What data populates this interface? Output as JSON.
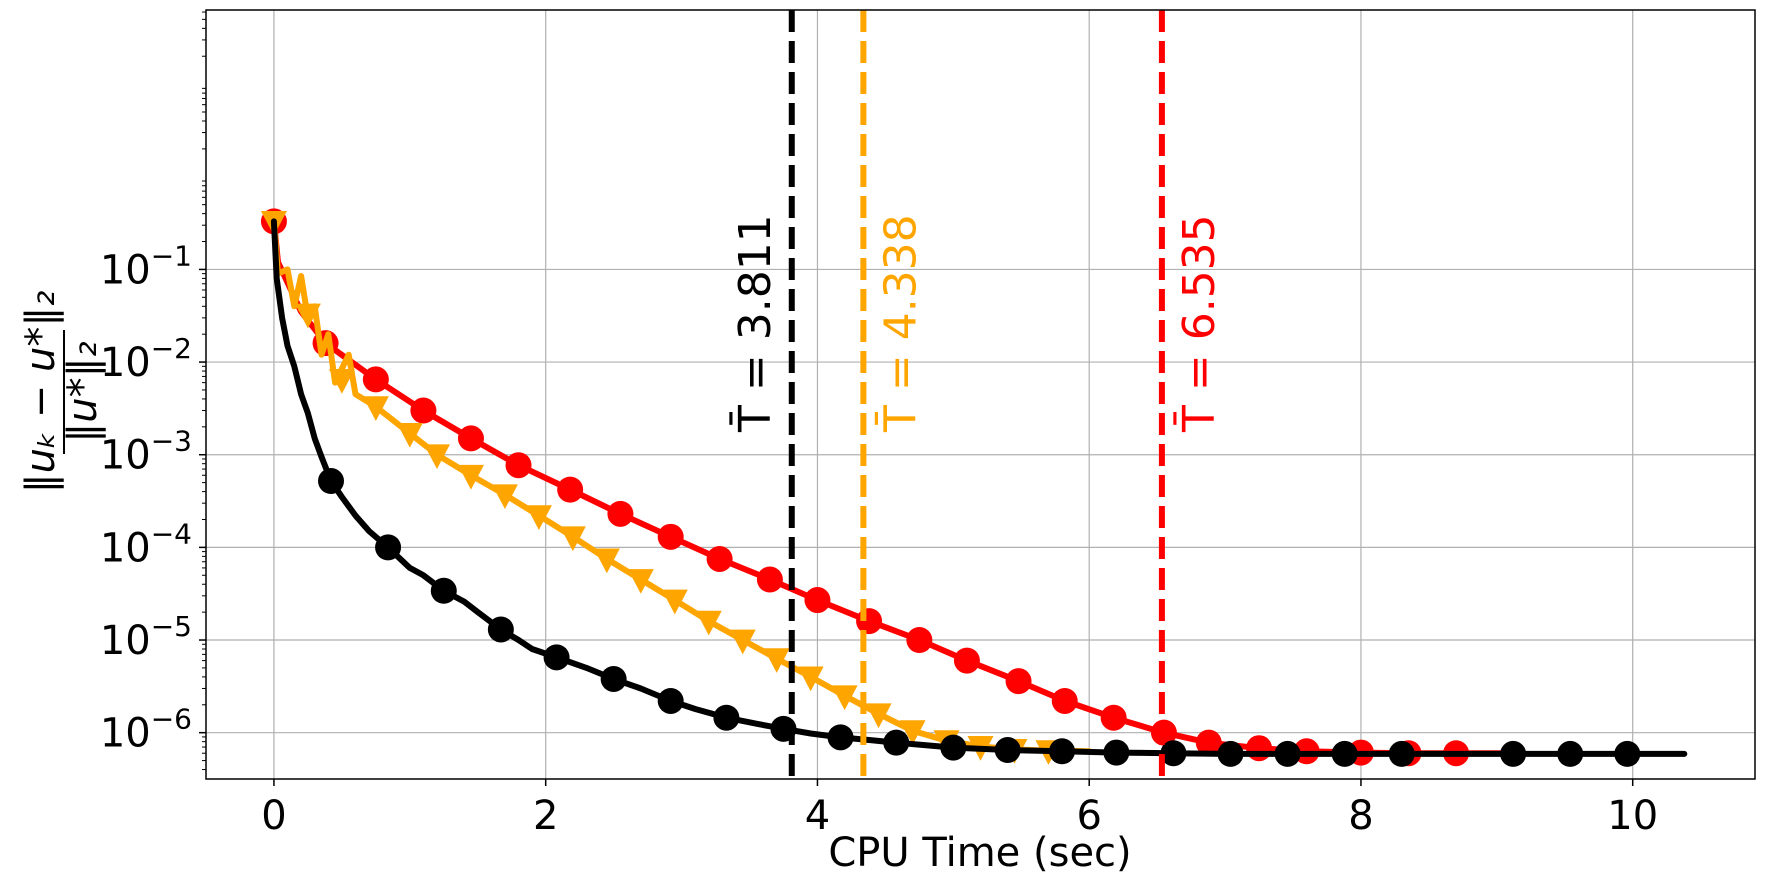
{
  "chart_data": {
    "type": "line",
    "title": "",
    "xlabel": "CPU Time (sec)",
    "ylabel": "‖u_k − u*‖₂ / ‖u*‖₂",
    "xlim": [
      -0.5,
      10.9
    ],
    "ylim_log10": [
      -6.5,
      1.8
    ],
    "yscale": "log",
    "grid": true,
    "x_ticks": [
      0,
      2,
      4,
      6,
      8,
      10
    ],
    "y_ticks_exponents": [
      -6,
      -5,
      -4,
      -3,
      -2,
      -1
    ],
    "y_tick_base": "10",
    "series": [
      {
        "color": "#ff0000",
        "marker": "circle",
        "curve": [
          [
            0,
            0.33
          ],
          [
            0.03,
            0.12
          ],
          [
            0.2,
            0.035
          ],
          [
            0.38,
            0.016
          ],
          [
            0.75,
            0.0065
          ],
          [
            1.1,
            0.003
          ],
          [
            1.45,
            0.0015
          ],
          [
            1.8,
            0.00077
          ],
          [
            2.18,
            0.00042
          ],
          [
            2.55,
            0.00023
          ],
          [
            2.92,
            0.00013
          ],
          [
            3.28,
            7.5e-05
          ],
          [
            3.65,
            4.5e-05
          ],
          [
            4.0,
            2.7e-05
          ],
          [
            4.38,
            1.6e-05
          ],
          [
            4.75,
            1e-05
          ],
          [
            5.1,
            6e-06
          ],
          [
            5.48,
            3.6e-06
          ],
          [
            5.82,
            2.2e-06
          ],
          [
            6.18,
            1.45e-06
          ],
          [
            6.55,
            1e-06
          ],
          [
            6.88,
            7.8e-07
          ],
          [
            7.25,
            6.8e-07
          ],
          [
            7.6,
            6.3e-07
          ],
          [
            8.0,
            6.1e-07
          ],
          [
            8.35,
            6e-07
          ],
          [
            8.7,
            6e-07
          ],
          [
            9.1,
            6e-07
          ]
        ],
        "markers": [
          [
            0,
            0.33
          ],
          [
            0.38,
            0.016
          ],
          [
            0.75,
            0.0065
          ],
          [
            1.1,
            0.003
          ],
          [
            1.45,
            0.0015
          ],
          [
            1.8,
            0.00077
          ],
          [
            2.18,
            0.00042
          ],
          [
            2.55,
            0.00023
          ],
          [
            2.92,
            0.00013
          ],
          [
            3.28,
            7.5e-05
          ],
          [
            3.65,
            4.5e-05
          ],
          [
            4.0,
            2.7e-05
          ],
          [
            4.38,
            1.6e-05
          ],
          [
            4.75,
            1e-05
          ],
          [
            5.1,
            6e-06
          ],
          [
            5.48,
            3.6e-06
          ],
          [
            5.82,
            2.2e-06
          ],
          [
            6.18,
            1.45e-06
          ],
          [
            6.55,
            1e-06
          ],
          [
            6.88,
            7.8e-07
          ],
          [
            7.25,
            6.8e-07
          ],
          [
            7.6,
            6.3e-07
          ],
          [
            8.0,
            6.1e-07
          ],
          [
            8.35,
            6e-07
          ],
          [
            8.7,
            6e-07
          ]
        ]
      },
      {
        "color": "#ffa500",
        "marker": "triangle-down",
        "curve": [
          [
            0,
            0.33
          ],
          [
            0.03,
            0.09
          ],
          [
            0.1,
            0.1
          ],
          [
            0.15,
            0.04
          ],
          [
            0.2,
            0.085
          ],
          [
            0.25,
            0.03
          ],
          [
            0.3,
            0.04
          ],
          [
            0.35,
            0.012
          ],
          [
            0.4,
            0.02
          ],
          [
            0.45,
            0.006
          ],
          [
            0.55,
            0.012
          ],
          [
            0.6,
            0.0045
          ],
          [
            0.75,
            0.0033
          ],
          [
            1.0,
            0.0017
          ],
          [
            1.2,
            0.001
          ],
          [
            1.45,
            0.0006
          ],
          [
            1.7,
            0.00037
          ],
          [
            1.95,
            0.00022
          ],
          [
            2.2,
            0.00013
          ],
          [
            2.45,
            7.5e-05
          ],
          [
            2.7,
            4.5e-05
          ],
          [
            2.95,
            2.7e-05
          ],
          [
            3.2,
            1.6e-05
          ],
          [
            3.45,
            1e-05
          ],
          [
            3.7,
            6.3e-06
          ],
          [
            3.95,
            4e-06
          ],
          [
            4.2,
            2.5e-06
          ],
          [
            4.45,
            1.6e-06
          ],
          [
            4.7,
            1.05e-06
          ],
          [
            4.95,
            8.2e-07
          ],
          [
            5.2,
            7.1e-07
          ],
          [
            5.45,
            6.6e-07
          ],
          [
            5.7,
            6.4e-07
          ],
          [
            6.0,
            6.3e-07
          ]
        ],
        "markers": [
          [
            0,
            0.33
          ],
          [
            0.25,
            0.033
          ],
          [
            0.5,
            0.0065
          ],
          [
            0.75,
            0.0033
          ],
          [
            1.0,
            0.0017
          ],
          [
            1.2,
            0.001
          ],
          [
            1.45,
            0.0006
          ],
          [
            1.7,
            0.00037
          ],
          [
            1.95,
            0.00022
          ],
          [
            2.2,
            0.00013
          ],
          [
            2.45,
            7.5e-05
          ],
          [
            2.7,
            4.5e-05
          ],
          [
            2.95,
            2.7e-05
          ],
          [
            3.2,
            1.6e-05
          ],
          [
            3.45,
            1e-05
          ],
          [
            3.7,
            6.3e-06
          ],
          [
            3.95,
            4e-06
          ],
          [
            4.2,
            2.5e-06
          ],
          [
            4.45,
            1.6e-06
          ],
          [
            4.7,
            1.05e-06
          ],
          [
            4.95,
            8.2e-07
          ],
          [
            5.2,
            7.1e-07
          ],
          [
            5.45,
            6.6e-07
          ],
          [
            5.7,
            6.4e-07
          ]
        ]
      },
      {
        "color": "#000000",
        "marker": "circle",
        "curve": [
          [
            0,
            0.33
          ],
          [
            0.02,
            0.08
          ],
          [
            0.06,
            0.03
          ],
          [
            0.1,
            0.015
          ],
          [
            0.15,
            0.009
          ],
          [
            0.2,
            0.0045
          ],
          [
            0.25,
            0.0028
          ],
          [
            0.3,
            0.0015
          ],
          [
            0.35,
            0.00095
          ],
          [
            0.42,
            0.00052
          ],
          [
            0.5,
            0.00035
          ],
          [
            0.6,
            0.00022
          ],
          [
            0.7,
            0.00015
          ],
          [
            0.84,
            0.0001
          ],
          [
            1.0,
            6e-05
          ],
          [
            1.1,
            5e-05
          ],
          [
            1.25,
            3.4e-05
          ],
          [
            1.4,
            2.6e-05
          ],
          [
            1.5,
            2e-05
          ],
          [
            1.67,
            1.3e-05
          ],
          [
            1.8,
            1e-05
          ],
          [
            1.9,
            8e-06
          ],
          [
            2.08,
            6.5e-06
          ],
          [
            2.3,
            5e-06
          ],
          [
            2.5,
            3.8e-06
          ],
          [
            2.7,
            3e-06
          ],
          [
            2.92,
            2.2e-06
          ],
          [
            3.1,
            1.8e-06
          ],
          [
            3.33,
            1.45e-06
          ],
          [
            3.55,
            1.25e-06
          ],
          [
            3.75,
            1.1e-06
          ],
          [
            3.95,
            9.8e-07
          ],
          [
            4.17,
            8.9e-07
          ],
          [
            4.4,
            8.3e-07
          ],
          [
            4.58,
            7.8e-07
          ],
          [
            4.8,
            7.3e-07
          ],
          [
            5.0,
            6.9e-07
          ],
          [
            5.4,
            6.5e-07
          ],
          [
            5.8,
            6.3e-07
          ],
          [
            6.2,
            6.1e-07
          ],
          [
            6.6,
            6e-07
          ],
          [
            7.0,
            5.9e-07
          ],
          [
            7.5,
            5.9e-07
          ],
          [
            8.0,
            5.9e-07
          ],
          [
            8.5,
            5.9e-07
          ],
          [
            9.0,
            5.9e-07
          ],
          [
            9.5,
            5.9e-07
          ],
          [
            10.0,
            5.9e-07
          ],
          [
            10.38,
            5.9e-07
          ]
        ],
        "markers": [
          [
            0.42,
            0.00052
          ],
          [
            0.84,
            0.0001
          ],
          [
            1.25,
            3.4e-05
          ],
          [
            1.67,
            1.3e-05
          ],
          [
            2.08,
            6.5e-06
          ],
          [
            2.5,
            3.8e-06
          ],
          [
            2.92,
            2.2e-06
          ],
          [
            3.33,
            1.45e-06
          ],
          [
            3.75,
            1.1e-06
          ],
          [
            4.17,
            8.9e-07
          ],
          [
            4.58,
            7.8e-07
          ],
          [
            5.0,
            6.9e-07
          ],
          [
            5.4,
            6.5e-07
          ],
          [
            5.8,
            6.3e-07
          ],
          [
            6.2,
            6.1e-07
          ],
          [
            6.62,
            6e-07
          ],
          [
            7.04,
            5.9e-07
          ],
          [
            7.46,
            5.9e-07
          ],
          [
            7.88,
            5.9e-07
          ],
          [
            8.3,
            5.9e-07
          ],
          [
            9.12,
            5.9e-07
          ],
          [
            9.54,
            5.9e-07
          ],
          [
            9.96,
            5.9e-07
          ]
        ]
      }
    ],
    "vlines": [
      {
        "x": 3.811,
        "color": "#000000",
        "label": "T̄ = 3.811"
      },
      {
        "x": 4.338,
        "color": "#ffa500",
        "label": "T̄ = 4.338"
      },
      {
        "x": 6.535,
        "color": "#ff0000",
        "label": "T̄ = 6.535"
      }
    ]
  }
}
